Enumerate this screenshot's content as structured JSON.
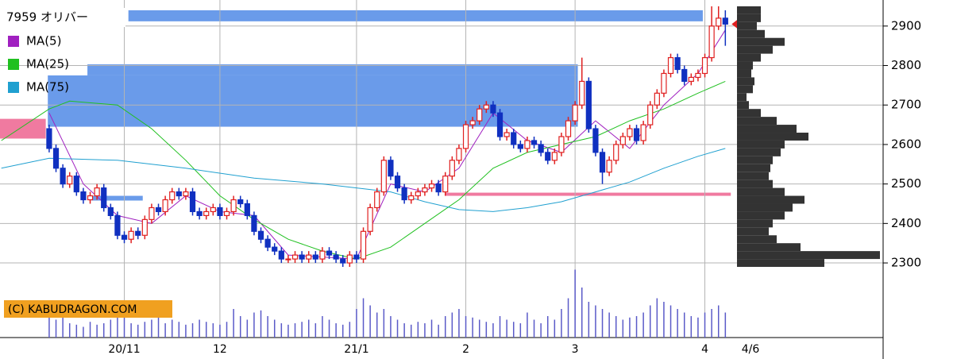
{
  "chart_data": {
    "type": "candlestick",
    "title": "7959 オリバー",
    "date": "4/6",
    "copyright": "(C) KABUDRAGON.COM",
    "grid": true,
    "ylim": [
      2111,
      2966
    ],
    "yticks": [
      2300,
      2400,
      2500,
      2600,
      2700,
      2800,
      2900
    ],
    "xlim": [
      -7.2,
      122.1
    ],
    "xticks": [
      {
        "value": 11,
        "label": "20/11"
      },
      {
        "value": 25,
        "label": "12"
      },
      {
        "value": 45,
        "label": "21/1"
      },
      {
        "value": 61,
        "label": "2"
      },
      {
        "value": 77,
        "label": "3"
      },
      {
        "value": 96,
        "label": "4"
      }
    ],
    "up_color": "#e02020",
    "down_color": "#1030c0",
    "open": [
      2640,
      2590,
      2540,
      2500,
      2520,
      2480,
      2460,
      2470,
      2490,
      2440,
      2420,
      2370,
      2360,
      2380,
      2370,
      2410,
      2440,
      2430,
      2460,
      2480,
      2470,
      2480,
      2430,
      2420,
      2430,
      2440,
      2420,
      2430,
      2460,
      2450,
      2420,
      2380,
      2360,
      2340,
      2330,
      2310,
      2310,
      2320,
      2310,
      2320,
      2310,
      2330,
      2320,
      2310,
      2300,
      2320,
      2310,
      2380,
      2440,
      2480,
      2560,
      2520,
      2490,
      2460,
      2470,
      2480,
      2490,
      2500,
      2480,
      2520,
      2560,
      2590,
      2650,
      2660,
      2690,
      2700,
      2680,
      2620,
      2630,
      2600,
      2590,
      2610,
      2600,
      2580,
      2560,
      2580,
      2620,
      2660,
      2700,
      2760,
      2640,
      2580,
      2530,
      2560,
      2600,
      2620,
      2640,
      2610,
      2650,
      2700,
      2730,
      2780,
      2820,
      2790,
      2760,
      2770,
      2780,
      2820,
      2900,
      2920
    ],
    "high": [
      2650,
      2600,
      2550,
      2530,
      2530,
      2490,
      2480,
      2500,
      2500,
      2450,
      2430,
      2380,
      2390,
      2390,
      2420,
      2450,
      2450,
      2470,
      2490,
      2490,
      2490,
      2490,
      2440,
      2440,
      2450,
      2450,
      2440,
      2470,
      2470,
      2460,
      2430,
      2390,
      2370,
      2350,
      2340,
      2320,
      2330,
      2330,
      2330,
      2330,
      2340,
      2340,
      2330,
      2320,
      2330,
      2330,
      2390,
      2450,
      2490,
      2570,
      2570,
      2530,
      2500,
      2480,
      2490,
      2500,
      2510,
      2510,
      2530,
      2570,
      2600,
      2660,
      2670,
      2700,
      2710,
      2710,
      2690,
      2640,
      2640,
      2610,
      2620,
      2620,
      2610,
      2590,
      2590,
      2630,
      2670,
      2710,
      2820,
      2770,
      2650,
      2590,
      2570,
      2610,
      2630,
      2650,
      2650,
      2660,
      2710,
      2740,
      2790,
      2830,
      2830,
      2800,
      2780,
      2790,
      2830,
      2950,
      2950,
      2940
    ],
    "low": [
      2580,
      2530,
      2490,
      2490,
      2470,
      2450,
      2450,
      2460,
      2430,
      2410,
      2360,
      2350,
      2350,
      2360,
      2360,
      2400,
      2420,
      2420,
      2450,
      2460,
      2460,
      2420,
      2410,
      2410,
      2420,
      2410,
      2410,
      2420,
      2440,
      2410,
      2370,
      2350,
      2330,
      2320,
      2300,
      2300,
      2300,
      2300,
      2300,
      2300,
      2300,
      2310,
      2300,
      2290,
      2290,
      2300,
      2300,
      2370,
      2430,
      2470,
      2510,
      2480,
      2450,
      2450,
      2460,
      2470,
      2480,
      2470,
      2470,
      2510,
      2550,
      2580,
      2640,
      2650,
      2680,
      2670,
      2610,
      2610,
      2590,
      2580,
      2580,
      2590,
      2570,
      2550,
      2550,
      2570,
      2610,
      2650,
      2690,
      2630,
      2570,
      2500,
      2520,
      2550,
      2590,
      2610,
      2600,
      2600,
      2640,
      2690,
      2720,
      2770,
      2780,
      2750,
      2750,
      2760,
      2770,
      2810,
      2890,
      2850
    ],
    "close": [
      2590,
      2540,
      2500,
      2520,
      2480,
      2460,
      2470,
      2490,
      2440,
      2420,
      2370,
      2360,
      2380,
      2370,
      2410,
      2440,
      2430,
      2460,
      2480,
      2470,
      2480,
      2430,
      2420,
      2430,
      2440,
      2420,
      2430,
      2460,
      2450,
      2420,
      2380,
      2360,
      2340,
      2330,
      2310,
      2310,
      2320,
      2310,
      2320,
      2310,
      2330,
      2320,
      2310,
      2300,
      2320,
      2310,
      2380,
      2440,
      2480,
      2560,
      2520,
      2490,
      2460,
      2470,
      2480,
      2490,
      2500,
      2480,
      2520,
      2560,
      2590,
      2650,
      2660,
      2690,
      2700,
      2680,
      2620,
      2630,
      2600,
      2590,
      2610,
      2600,
      2580,
      2560,
      2580,
      2620,
      2660,
      2700,
      2760,
      2640,
      2580,
      2530,
      2560,
      2600,
      2620,
      2640,
      2610,
      2650,
      2700,
      2730,
      2780,
      2820,
      2790,
      2760,
      2770,
      2780,
      2820,
      2900,
      2920,
      2905
    ],
    "volume": [
      40,
      25,
      30,
      20,
      18,
      15,
      22,
      18,
      20,
      25,
      30,
      28,
      20,
      18,
      22,
      25,
      30,
      20,
      25,
      22,
      18,
      20,
      25,
      22,
      20,
      18,
      22,
      40,
      30,
      25,
      35,
      38,
      30,
      25,
      20,
      18,
      20,
      22,
      25,
      20,
      30,
      25,
      20,
      18,
      22,
      40,
      55,
      45,
      35,
      40,
      30,
      25,
      20,
      18,
      22,
      20,
      25,
      18,
      30,
      35,
      40,
      30,
      28,
      25,
      22,
      20,
      30,
      25,
      22,
      20,
      35,
      25,
      20,
      30,
      25,
      40,
      55,
      95,
      70,
      50,
      45,
      40,
      35,
      30,
      25,
      28,
      30,
      35,
      45,
      55,
      50,
      45,
      40,
      35,
      30,
      28,
      35,
      40,
      45,
      35
    ],
    "volume_color": "#5a5ac8",
    "vlim": [
      0,
      100
    ],
    "series": [
      {
        "name": "MA(5)",
        "color": "#a020c0",
        "x": [
          0,
          5,
          10,
          15,
          20,
          25,
          30,
          35,
          40,
          45,
          50,
          55,
          60,
          65,
          70,
          75,
          80,
          85,
          90,
          95,
          99
        ],
        "values": [
          2680,
          2500,
          2420,
          2400,
          2470,
          2430,
          2420,
          2320,
          2315,
          2310,
          2500,
          2480,
          2540,
          2680,
          2610,
          2580,
          2660,
          2590,
          2700,
          2780,
          2890
        ]
      },
      {
        "name": "MA(25)",
        "color": "#20c020",
        "x": [
          -7,
          0,
          3,
          10,
          15,
          20,
          25,
          30,
          35,
          40,
          45,
          50,
          55,
          60,
          65,
          70,
          75,
          80,
          85,
          90,
          95,
          99
        ],
        "values": [
          2610,
          2690,
          2710,
          2700,
          2640,
          2560,
          2470,
          2410,
          2360,
          2330,
          2310,
          2340,
          2400,
          2460,
          2540,
          2580,
          2600,
          2620,
          2660,
          2690,
          2730,
          2760
        ]
      },
      {
        "name": "MA(75)",
        "color": "#20a0d0",
        "x": [
          -7,
          0,
          10,
          20,
          30,
          40,
          50,
          55,
          60,
          65,
          70,
          75,
          80,
          85,
          90,
          95,
          99
        ],
        "values": [
          2540,
          2565,
          2560,
          2540,
          2515,
          2500,
          2480,
          2455,
          2435,
          2430,
          2440,
          2455,
          2480,
          2505,
          2540,
          2570,
          2590
        ]
      }
    ],
    "zones": [
      {
        "low": 2912,
        "high": 2940,
        "start": 11.6,
        "end": 95.7,
        "color": "#6a9bea"
      },
      {
        "low": 2645,
        "high": 2775,
        "start": -0.2,
        "end": 77.4,
        "color": "#6a9bea"
      },
      {
        "low": 2775,
        "high": 2803,
        "start": 5.6,
        "end": 77.4,
        "color": "#6a9bea"
      },
      {
        "low": 2458,
        "high": 2470,
        "start": 6.2,
        "end": 13.7,
        "color": "#6a9bea"
      },
      {
        "low": 2615,
        "high": 2665,
        "start": -7.2,
        "end": -0.5,
        "color": "#f07aa0"
      },
      {
        "low": 2470,
        "high": 2478,
        "start": 58,
        "end": 99.8,
        "color": "#f07aa0"
      }
    ],
    "profile": {
      "color": "#333333",
      "xlim": [
        0,
        184
      ],
      "bins": [
        2290,
        2310,
        2330,
        2350,
        2370,
        2390,
        2410,
        2430,
        2450,
        2470,
        2490,
        2510,
        2530,
        2550,
        2570,
        2590,
        2610,
        2630,
        2650,
        2670,
        2690,
        2710,
        2730,
        2750,
        2770,
        2790,
        2810,
        2830,
        2850,
        2870,
        2890,
        2910,
        2930,
        2950
      ],
      "counts": [
        110,
        180,
        80,
        50,
        40,
        45,
        60,
        70,
        85,
        60,
        45,
        40,
        42,
        45,
        55,
        60,
        90,
        75,
        50,
        30,
        15,
        12,
        20,
        22,
        18,
        20,
        30,
        45,
        60,
        35,
        25,
        30,
        30
      ]
    }
  }
}
